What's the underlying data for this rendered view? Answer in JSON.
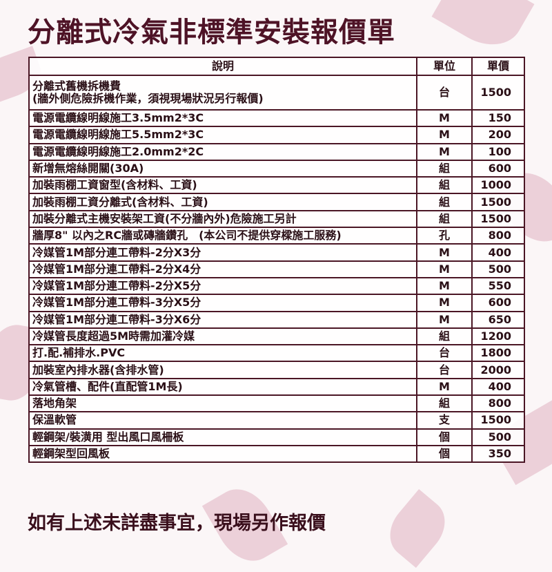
{
  "title": "分離式冷氣非標準安裝報價單",
  "table": {
    "headers": [
      "說明",
      "單位",
      "單價"
    ],
    "rows": [
      {
        "desc": "分離式舊機拆機費",
        "desc2": "(牆外側危險拆機作業，須視現場狀況另行報價)",
        "unit": "台",
        "price": "1500"
      },
      {
        "desc": "電源電纜線明線施工3.5mm2*3C",
        "unit": "M",
        "price": "150"
      },
      {
        "desc": "電源電纜線明線施工5.5mm2*3C",
        "unit": "M",
        "price": "200"
      },
      {
        "desc": "電源電纜線明線施工2.0mm2*2C",
        "unit": "M",
        "price": "100"
      },
      {
        "desc": "新增無熔絲開關(30A)",
        "unit": "組",
        "price": "600"
      },
      {
        "desc": "加裝雨棚工資窗型(含材料、工資)",
        "unit": "組",
        "price": "1000"
      },
      {
        "desc": "加裝雨棚工資分離式(含材料、工資)",
        "unit": "組",
        "price": "1500"
      },
      {
        "desc": "加裝分離式主機安裝架工資(不分牆內外)危險施工另計",
        "unit": "組",
        "price": "1500"
      },
      {
        "desc": "牆厚8\" 以內之RC牆或磚牆鑽孔　(本公司不提供穿樑施工服務)",
        "unit": "孔",
        "price": "800"
      },
      {
        "desc": "冷媒管1M部分連工帶料-2分X3分",
        "unit": "M",
        "price": "400"
      },
      {
        "desc": "冷媒管1M部分連工帶料-2分X4分",
        "unit": "M",
        "price": "500"
      },
      {
        "desc": "冷媒管1M部分連工帶料-2分X5分",
        "unit": "M",
        "price": "550"
      },
      {
        "desc": "冷媒管1M部分連工帶料-3分X5分",
        "unit": "M",
        "price": "600"
      },
      {
        "desc": "冷媒管1M部分連工帶料-3分X6分",
        "unit": "M",
        "price": "650"
      },
      {
        "desc": "冷媒管長度超過5M時需加灌冷媒",
        "unit": "組",
        "price": "1200"
      },
      {
        "desc": "打.配.補排水.PVC",
        "unit": "台",
        "price": "1800"
      },
      {
        "desc": "加裝室內排水器(含排水管)",
        "unit": "台",
        "price": "2000"
      },
      {
        "desc": "冷氣管槽、配件(直配管1M長)",
        "unit": "M",
        "price": "400"
      },
      {
        "desc": "落地角架",
        "unit": "組",
        "price": "800"
      },
      {
        "desc": "保溫軟管",
        "unit": "支",
        "price": "1500"
      },
      {
        "desc": "輕鋼架/裝潢用 型出風口風柵板",
        "unit": "個",
        "price": "500"
      },
      {
        "desc": "輕鋼架型回風板",
        "unit": "個",
        "price": "350"
      }
    ]
  },
  "footer": "如有上述未詳盡事宜，現場另作報價",
  "colors": {
    "title": "#4e1326",
    "border": "#4a1524",
    "petal": "#e7c3cf"
  }
}
